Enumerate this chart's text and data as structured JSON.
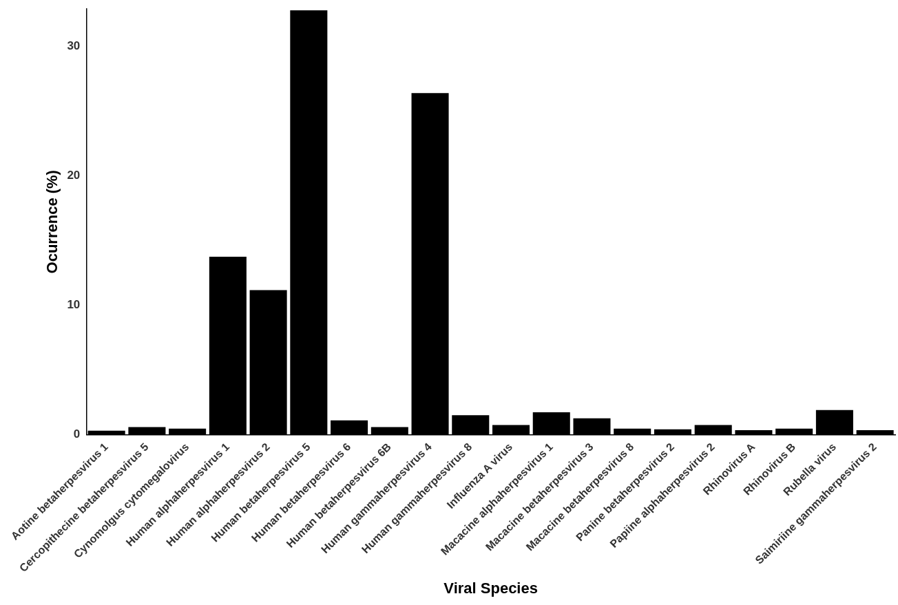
{
  "chart_data": {
    "type": "bar",
    "xlabel": "Viral Species",
    "ylabel": "Ocurrence (%)",
    "categories": [
      "Aotine betaherpesvirus 1",
      "Cercopithecine betaherpesvirus 5",
      "Cynomolgus cytomegalovirus",
      "Human alphaherpesvirus 1",
      "Human alphaherpesvirus 2",
      "Human betaherpesvirus 5",
      "Human betaherpesvirus 6",
      "Human betaherpesvirus 6B",
      "Human gammaherpesvirus 4",
      "Human gammaherpesvirus 8",
      "Influenza A virus",
      "Macacine alphaherpesvirus 1",
      "Macacine betaherpesvirus 3",
      "Macacine betaherpesvirus 8",
      "Panine betaherpesvirus 2",
      "Papiine alphaherpesvirus 2",
      "Rhinovirus A",
      "Rhinovirus B",
      "Rubella virus",
      "Saimiriine gammaherpesvirus 2"
    ],
    "values": [
      0.3,
      0.57,
      0.46,
      13.75,
      11.17,
      32.8,
      1.09,
      0.57,
      26.4,
      1.49,
      0.74,
      1.72,
      1.26,
      0.46,
      0.4,
      0.74,
      0.34,
      0.46,
      1.89,
      0.34
    ],
    "color": "#000000",
    "ylim": [
      0,
      32.9
    ],
    "yticks": [
      0,
      10,
      20,
      30
    ],
    "grid": false
  }
}
